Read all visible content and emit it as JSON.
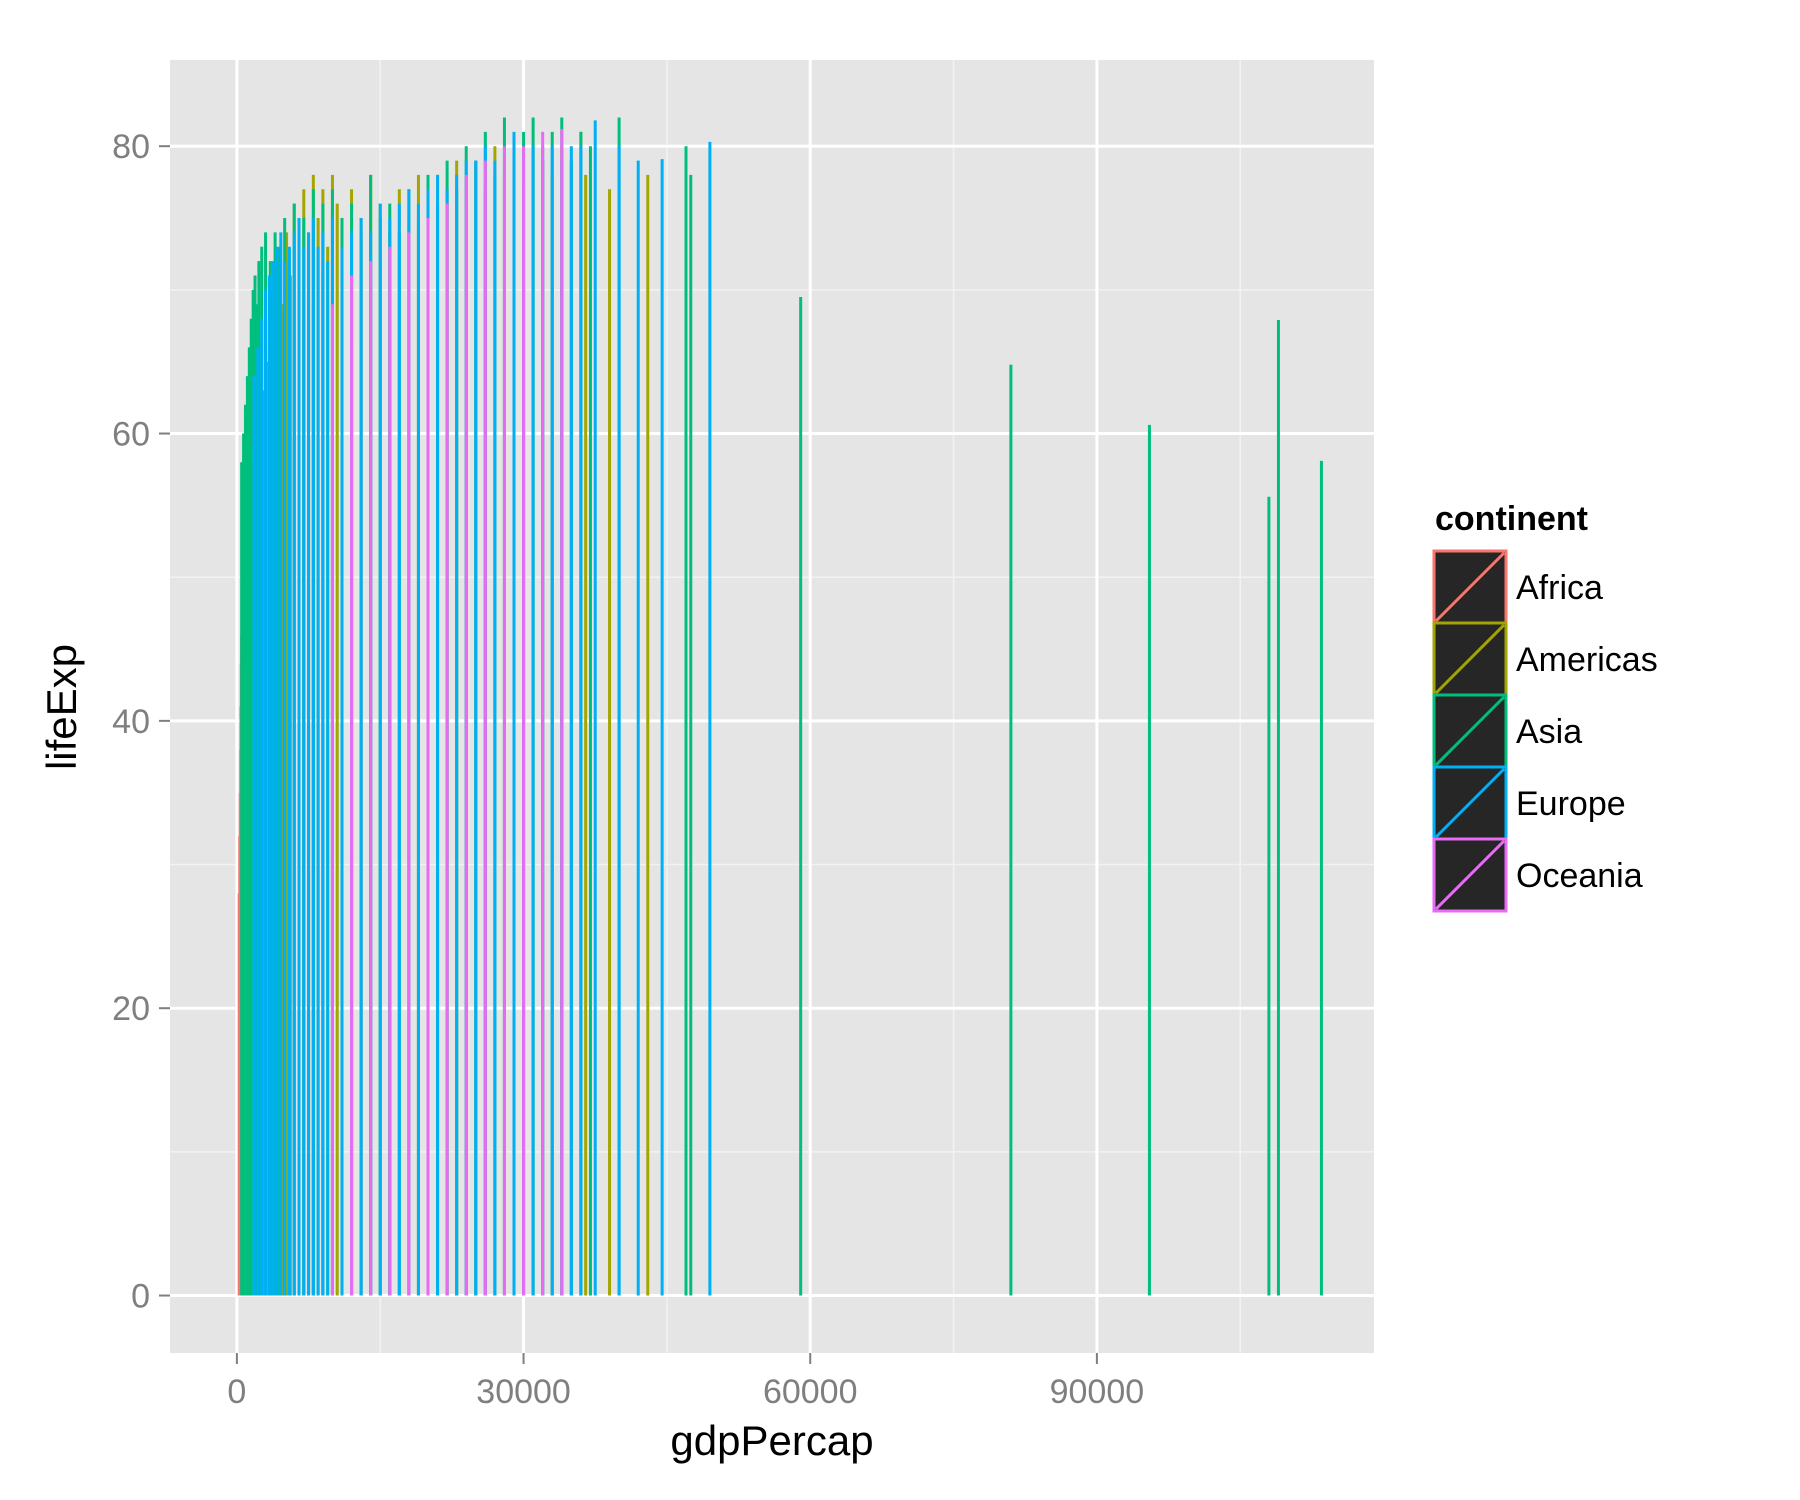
{
  "chart_data": {
    "type": "spike",
    "xlabel": "gdpPercap",
    "ylabel": "lifeExp",
    "xlim": [
      -7000,
      119000
    ],
    "ylim": [
      -4,
      86
    ],
    "x_ticks": [
      0,
      30000,
      60000,
      90000
    ],
    "x_tick_labels": [
      "0",
      "30000",
      "60000",
      "90000"
    ],
    "y_ticks": [
      0,
      20,
      40,
      60,
      80
    ],
    "y_tick_labels": [
      "0",
      "20",
      "40",
      "60",
      "80"
    ],
    "grid": true,
    "baseline": 0,
    "panel_color": "#e5e5e5",
    "grid_color": "#ffffff",
    "legend": {
      "title": "continent",
      "position": "right",
      "entries": [
        {
          "label": "Africa",
          "color": "#F8766D"
        },
        {
          "label": "Americas",
          "color": "#A3A500"
        },
        {
          "label": "Asia",
          "color": "#00BF7D"
        },
        {
          "label": "Europe",
          "color": "#00B0F6"
        },
        {
          "label": "Oceania",
          "color": "#E76BF3"
        }
      ]
    },
    "series": [
      {
        "name": "Africa",
        "color": "#F8766D",
        "points": [
          [
            241,
            28
          ],
          [
            300,
            32
          ],
          [
            350,
            35
          ],
          [
            400,
            38
          ],
          [
            420,
            41
          ],
          [
            460,
            44
          ],
          [
            500,
            46
          ],
          [
            530,
            43
          ],
          [
            560,
            47
          ],
          [
            600,
            48
          ],
          [
            640,
            45
          ],
          [
            680,
            50
          ],
          [
            720,
            52
          ],
          [
            760,
            49
          ],
          [
            800,
            53
          ],
          [
            850,
            55
          ],
          [
            900,
            51
          ],
          [
            950,
            56
          ],
          [
            1000,
            58
          ],
          [
            1050,
            54
          ],
          [
            1100,
            60
          ],
          [
            1150,
            57
          ],
          [
            1200,
            61
          ],
          [
            1300,
            59
          ],
          [
            1400,
            62
          ],
          [
            1500,
            56
          ],
          [
            1600,
            63
          ],
          [
            1800,
            58
          ],
          [
            2000,
            64
          ],
          [
            2200,
            60
          ],
          [
            2400,
            65
          ],
          [
            2700,
            61
          ],
          [
            3000,
            66
          ],
          [
            3300,
            62
          ],
          [
            3600,
            68
          ],
          [
            4000,
            63
          ],
          [
            4500,
            70
          ],
          [
            5000,
            65
          ],
          [
            5500,
            71
          ],
          [
            6000,
            67
          ],
          [
            6500,
            72
          ],
          [
            7000,
            68
          ],
          [
            7500,
            73
          ],
          [
            8000,
            69
          ],
          [
            9000,
            71
          ],
          [
            10000,
            72
          ],
          [
            11000,
            73
          ],
          [
            12000,
            66
          ],
          [
            13000,
            74
          ],
          [
            14000,
            70
          ]
        ]
      },
      {
        "name": "Americas",
        "color": "#A3A500",
        "points": [
          [
            1200,
            62
          ],
          [
            1500,
            58
          ],
          [
            1800,
            64
          ],
          [
            2100,
            60
          ],
          [
            2400,
            66
          ],
          [
            2700,
            63
          ],
          [
            3000,
            68
          ],
          [
            3300,
            65
          ],
          [
            3600,
            70
          ],
          [
            4000,
            67
          ],
          [
            4400,
            72
          ],
          [
            4800,
            69
          ],
          [
            5200,
            74
          ],
          [
            5600,
            71
          ],
          [
            6000,
            76
          ],
          [
            6500,
            73
          ],
          [
            7000,
            77
          ],
          [
            7500,
            74
          ],
          [
            8000,
            78
          ],
          [
            8500,
            75
          ],
          [
            9000,
            77
          ],
          [
            9500,
            73
          ],
          [
            10000,
            78
          ],
          [
            10500,
            76
          ],
          [
            11000,
            74
          ],
          [
            12000,
            77
          ],
          [
            13000,
            75
          ],
          [
            14000,
            78
          ],
          [
            15000,
            76
          ],
          [
            16000,
            74
          ],
          [
            17000,
            77
          ],
          [
            18000,
            75
          ],
          [
            19000,
            78
          ],
          [
            20000,
            76
          ],
          [
            21000,
            78
          ],
          [
            22000,
            77
          ],
          [
            23000,
            79
          ],
          [
            24000,
            76
          ],
          [
            25000,
            79
          ],
          [
            26000,
            77
          ],
          [
            27000,
            80
          ],
          [
            28000,
            78
          ],
          [
            29000,
            79
          ],
          [
            30000,
            77
          ],
          [
            31000,
            80
          ],
          [
            32000,
            79
          ],
          [
            33000,
            78
          ],
          [
            34000,
            80
          ],
          [
            35000,
            79
          ],
          [
            36000,
            81
          ],
          [
            36500,
            78
          ],
          [
            39000,
            77
          ],
          [
            43000,
            78
          ]
        ]
      },
      {
        "name": "Asia",
        "color": "#00BF7D",
        "points": [
          [
            500,
            58
          ],
          [
            700,
            60
          ],
          [
            900,
            62
          ],
          [
            1100,
            64
          ],
          [
            1300,
            66
          ],
          [
            1500,
            68
          ],
          [
            1700,
            70
          ],
          [
            1900,
            71
          ],
          [
            2100,
            69
          ],
          [
            2300,
            72
          ],
          [
            2600,
            73
          ],
          [
            3000,
            74
          ],
          [
            3500,
            72
          ],
          [
            4000,
            74
          ],
          [
            4500,
            73
          ],
          [
            5000,
            75
          ],
          [
            6000,
            76
          ],
          [
            7000,
            75
          ],
          [
            8000,
            77
          ],
          [
            9000,
            76
          ],
          [
            10000,
            77
          ],
          [
            11000,
            75
          ],
          [
            12000,
            76
          ],
          [
            13000,
            74
          ],
          [
            14000,
            78
          ],
          [
            15000,
            75
          ],
          [
            16000,
            76
          ],
          [
            17000,
            74
          ],
          [
            18000,
            77
          ],
          [
            19000,
            75
          ],
          [
            20000,
            78
          ],
          [
            21000,
            76
          ],
          [
            22000,
            79
          ],
          [
            23000,
            77
          ],
          [
            24000,
            80
          ],
          [
            25000,
            79
          ],
          [
            26000,
            81
          ],
          [
            27000,
            78
          ],
          [
            28000,
            82
          ],
          [
            29000,
            80
          ],
          [
            30000,
            81
          ],
          [
            31000,
            82
          ],
          [
            32000,
            80
          ],
          [
            33000,
            81
          ],
          [
            34000,
            82
          ],
          [
            35000,
            79
          ],
          [
            36000,
            81
          ],
          [
            37000,
            80
          ],
          [
            40000,
            82
          ],
          [
            47000,
            80
          ],
          [
            47500,
            78
          ],
          [
            59000,
            69.5
          ],
          [
            81000,
            64.8
          ],
          [
            95500,
            60.6
          ],
          [
            108000,
            55.6
          ],
          [
            109000,
            67.9
          ],
          [
            113500,
            58.1
          ]
        ]
      },
      {
        "name": "Europe",
        "color": "#00B0F6",
        "points": [
          [
            1800,
            64
          ],
          [
            2200,
            66
          ],
          [
            2600,
            68
          ],
          [
            3000,
            70
          ],
          [
            3400,
            71
          ],
          [
            3800,
            72
          ],
          [
            4200,
            73
          ],
          [
            4600,
            74
          ],
          [
            5000,
            72
          ],
          [
            5500,
            73
          ],
          [
            6000,
            74
          ],
          [
            6500,
            75
          ],
          [
            7000,
            73
          ],
          [
            7500,
            74
          ],
          [
            8000,
            75
          ],
          [
            8500,
            73
          ],
          [
            9000,
            74
          ],
          [
            9500,
            72
          ],
          [
            10000,
            75
          ],
          [
            11000,
            73
          ],
          [
            12000,
            74
          ],
          [
            13000,
            75
          ],
          [
            14000,
            74
          ],
          [
            15000,
            76
          ],
          [
            16000,
            75
          ],
          [
            17000,
            76
          ],
          [
            18000,
            77
          ],
          [
            19000,
            76
          ],
          [
            20000,
            77
          ],
          [
            21000,
            78
          ],
          [
            22000,
            77
          ],
          [
            23000,
            78
          ],
          [
            24000,
            79
          ],
          [
            25000,
            79
          ],
          [
            26000,
            80
          ],
          [
            27000,
            79
          ],
          [
            28000,
            80
          ],
          [
            29000,
            81
          ],
          [
            30000,
            79
          ],
          [
            31000,
            80
          ],
          [
            32000,
            79
          ],
          [
            33000,
            80
          ],
          [
            34000,
            79
          ],
          [
            35000,
            80
          ],
          [
            36000,
            80
          ],
          [
            37500,
            81.8
          ],
          [
            40000,
            80
          ],
          [
            42000,
            79
          ],
          [
            44500,
            79.1
          ],
          [
            49500,
            80.3
          ]
        ]
      },
      {
        "name": "Oceania",
        "color": "#E76BF3",
        "points": [
          [
            10000,
            69
          ],
          [
            12000,
            71
          ],
          [
            14000,
            72
          ],
          [
            16000,
            73
          ],
          [
            18000,
            74
          ],
          [
            20000,
            75
          ],
          [
            22000,
            76
          ],
          [
            24000,
            78
          ],
          [
            26000,
            79
          ],
          [
            28000,
            80
          ],
          [
            30000,
            80
          ],
          [
            32000,
            81
          ],
          [
            34000,
            81.2
          ]
        ]
      }
    ]
  }
}
